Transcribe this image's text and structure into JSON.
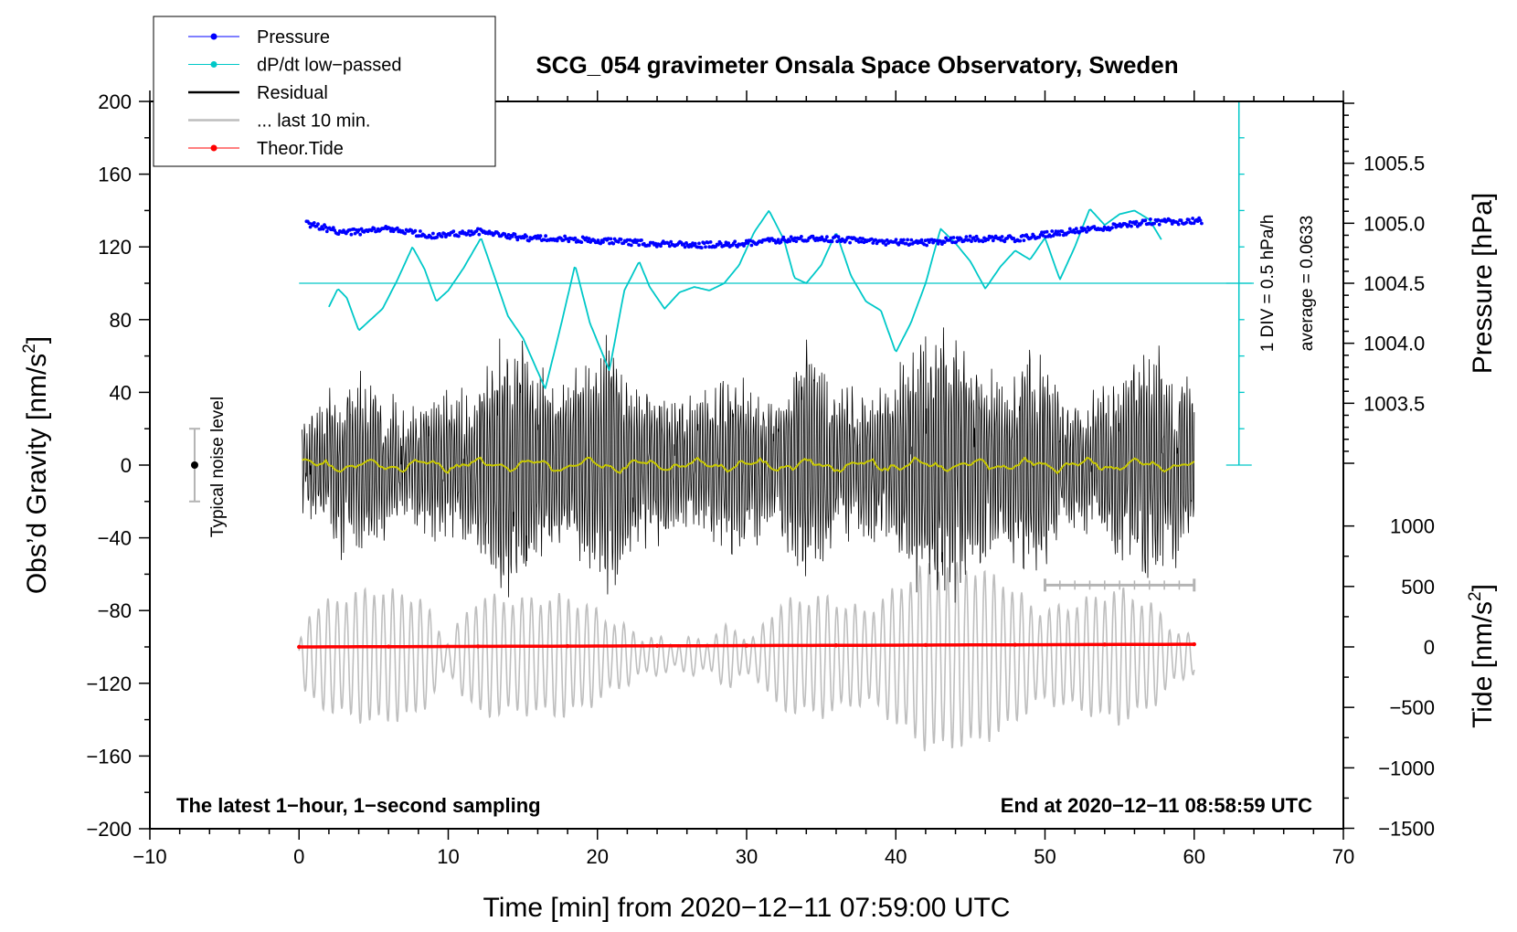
{
  "chart_data": {
    "type": "line",
    "title": "SCG_054 gravimeter Onsala Space Observatory, Sweden",
    "xlabel": "Time [min] from 2020−12−11 07:59:00 UTC",
    "ylabel_main": "Obs’d Gravity [nm/s",
    "ylabel_main_sup": "2",
    "ylabel_main_end": "]",
    "ylabel_pressure": "Pressure [hPa]",
    "ylabel_tide": "Tide [nm/s",
    "ylabel_tide_sup": "2",
    "ylabel_tide_end": "]",
    "xlim": [
      -10,
      70
    ],
    "ylim": [
      -200,
      200
    ],
    "pressure_ylim": [
      1003.0,
      1006.0
    ],
    "tide_ylim": [
      -1500,
      1500
    ],
    "x_ticks": [
      -10,
      0,
      10,
      20,
      30,
      40,
      50,
      60,
      70
    ],
    "x_tick_labels": [
      "−10",
      "0",
      "10",
      "20",
      "30",
      "40",
      "50",
      "60",
      "70"
    ],
    "y_ticks": [
      -200,
      -160,
      -120,
      -80,
      -40,
      0,
      40,
      80,
      120,
      160,
      200
    ],
    "y_tick_labels": [
      "−200",
      "−160",
      "−120",
      "−80",
      "−40",
      "0",
      "40",
      "80",
      "120",
      "160",
      "200"
    ],
    "pressure_ticks": [
      1003.5,
      1004.0,
      1004.5,
      1005.0,
      1005.5
    ],
    "pressure_tick_labels": [
      "1003.5",
      "1004.0",
      "1004.5",
      "1005.0",
      "1005.5"
    ],
    "tide_ticks": [
      -1500,
      -1000,
      -500,
      0,
      500,
      1000
    ],
    "tide_tick_labels": [
      "−1500",
      "−1000",
      "−500",
      "0",
      "500",
      "1000"
    ],
    "legend": [
      {
        "label": "Pressure",
        "color": "#0000ff",
        "marker": true
      },
      {
        "label": "dP/dt low−passed",
        "color": "#00c8c8",
        "marker": true
      },
      {
        "label": "Residual",
        "color": "#000000",
        "marker": false
      },
      {
        "label": "... last 10 min.",
        "color": "#bebebe",
        "marker": false
      },
      {
        "label": "Theor.Tide",
        "color": "#ff0000",
        "marker": true
      }
    ],
    "annotations": {
      "bottom_left": "The latest 1−hour, 1−second sampling",
      "bottom_right": "End at 2020−12−11 08:58:59 UTC",
      "noise": "Typical noise level",
      "div": "1 DIV = 0.5 hPa/h",
      "average": "average = 0.0633"
    },
    "noise_bar": {
      "x": -7,
      "center": 0,
      "half_range": 20
    },
    "last10_bar": {
      "x_start": 50,
      "x_end": 60,
      "y": -66
    },
    "dpdt_baseline": 100,
    "dpdt_scale": {
      "x": 63,
      "y_bottom": 0,
      "y_top": 200
    },
    "series": [
      {
        "name": "Pressure",
        "color": "#0000ff",
        "x": [
          0.5,
          3,
          6,
          9,
          12,
          15,
          18,
          21,
          24,
          27,
          30,
          33,
          36,
          39,
          42,
          45,
          48,
          51,
          54,
          57,
          60.5
        ],
        "values": [
          1005.0,
          1004.92,
          1004.95,
          1004.9,
          1004.93,
          1004.88,
          1004.87,
          1004.85,
          1004.83,
          1004.82,
          1004.83,
          1004.87,
          1004.87,
          1004.84,
          1004.84,
          1004.87,
          1004.87,
          1004.92,
          1004.96,
          1005.01,
          1005.02
        ]
      },
      {
        "name": "dP/dt low−passed",
        "color": "#00c8c8",
        "x": [
          2,
          2.6,
          3.2,
          4,
          4.8,
          5.6,
          6.6,
          7.6,
          8.4,
          9.2,
          10,
          11,
          12.2,
          13,
          14,
          15,
          16.5,
          17.5,
          18.5,
          19.5,
          20.8,
          21.8,
          22.8,
          23.5,
          24.5,
          25.5,
          26.5,
          27.5,
          28.5,
          29.5,
          30.5,
          31.5,
          32.5,
          33.2,
          34,
          35,
          36,
          37,
          38,
          39,
          40,
          41,
          42,
          43,
          44,
          45,
          46,
          47,
          48,
          49,
          50,
          51,
          52,
          53,
          54,
          55,
          56,
          57,
          57.8
        ],
        "values": [
          87,
          97,
          92,
          74,
          80,
          86,
          102,
          120,
          108,
          90,
          96,
          108,
          125,
          106,
          82,
          70,
          42,
          75,
          110,
          78,
          52,
          96,
          112,
          98,
          86,
          95,
          98,
          96,
          100,
          110,
          128,
          140,
          124,
          103,
          100,
          110,
          128,
          104,
          90,
          85,
          62,
          78,
          100,
          130,
          122,
          112,
          97,
          109,
          118,
          113,
          125,
          102,
          120,
          141,
          132,
          138,
          140,
          135,
          124
        ]
      }
    ]
  }
}
